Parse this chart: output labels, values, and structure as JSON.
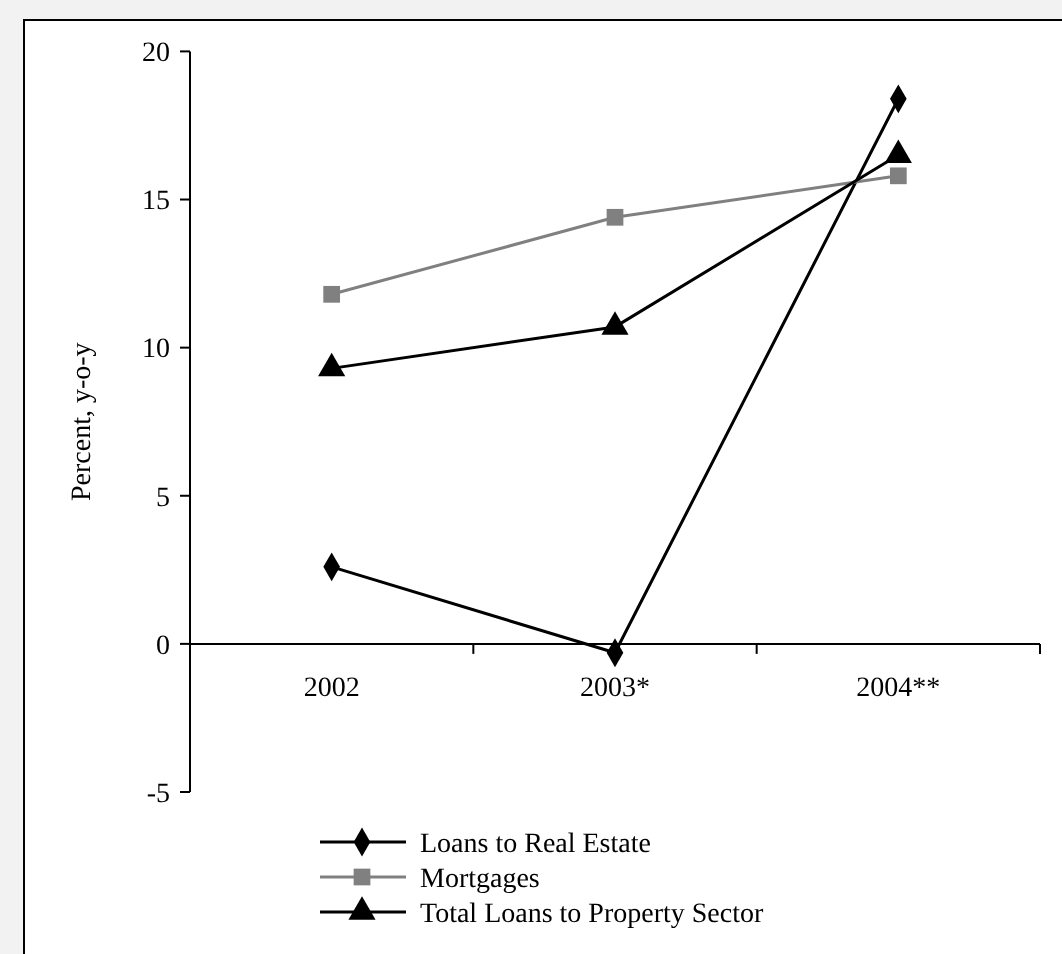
{
  "chart_data": {
    "type": "line",
    "ylabel": "Percent, y-o-y",
    "categories": [
      "2002",
      "2003*",
      "2004**"
    ],
    "series": [
      {
        "name": "Loans to Real Estate",
        "color": "#000000",
        "marker": "diamond",
        "values": [
          2.6,
          -0.3,
          18.4
        ]
      },
      {
        "name": "Mortgages",
        "color": "#808080",
        "marker": "square",
        "values": [
          11.8,
          14.4,
          15.8
        ]
      },
      {
        "name": "Total Loans to Property Sector",
        "color": "#000000",
        "marker": "triangle",
        "values": [
          9.3,
          10.7,
          16.5
        ]
      }
    ],
    "ylim": [
      -5,
      20
    ],
    "yticks": [
      -5,
      0,
      5,
      10,
      15,
      20
    ],
    "grid": false,
    "legend": "bottom"
  }
}
